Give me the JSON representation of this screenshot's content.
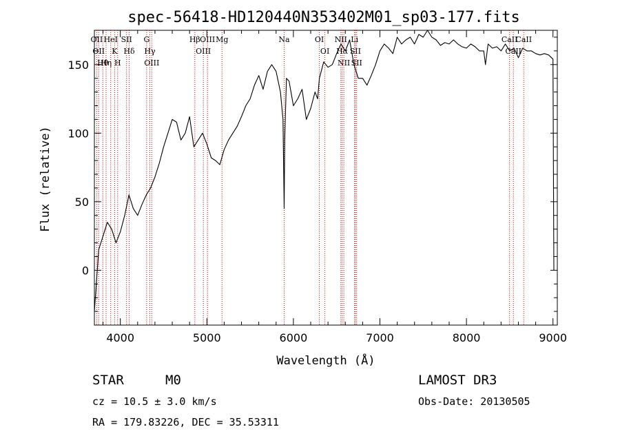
{
  "chart_data": {
    "type": "line",
    "title": "spec-56418-HD120440N353402M01_sp03-177.fits",
    "xlabel": "Wavelength (Å)",
    "ylabel": "Flux (relative)",
    "xlim": [
      3700,
      9050
    ],
    "ylim": [
      -40,
      175
    ],
    "xticks": [
      4000,
      5000,
      6000,
      7000,
      8000,
      9000
    ],
    "yticks": [
      0,
      50,
      100,
      150
    ],
    "series": [
      {
        "name": "flux",
        "x": [
          3700,
          3750,
          3800,
          3850,
          3900,
          3950,
          4000,
          4050,
          4100,
          4150,
          4200,
          4250,
          4300,
          4350,
          4400,
          4450,
          4500,
          4550,
          4600,
          4650,
          4700,
          4750,
          4800,
          4850,
          4900,
          4950,
          5000,
          5050,
          5100,
          5150,
          5200,
          5250,
          5300,
          5350,
          5400,
          5450,
          5500,
          5550,
          5600,
          5650,
          5700,
          5750,
          5800,
          5850,
          5880,
          5893,
          5900,
          5920,
          5950,
          6000,
          6050,
          6100,
          6150,
          6200,
          6250,
          6280,
          6300,
          6350,
          6400,
          6450,
          6500,
          6550,
          6600,
          6650,
          6700,
          6750,
          6800,
          6850,
          6900,
          6950,
          7000,
          7050,
          7100,
          7150,
          7200,
          7250,
          7300,
          7350,
          7400,
          7450,
          7500,
          7550,
          7600,
          7650,
          7700,
          7750,
          7800,
          7850,
          7900,
          7950,
          8000,
          8050,
          8100,
          8150,
          8200,
          8220,
          8250,
          8300,
          8350,
          8400,
          8450,
          8500,
          8550,
          8600,
          8650,
          8700,
          8750,
          8800,
          8850,
          8900,
          8950,
          9000,
          9010
        ],
        "y": [
          -30,
          15,
          25,
          35,
          30,
          20,
          28,
          40,
          55,
          45,
          40,
          48,
          55,
          60,
          68,
          78,
          90,
          100,
          110,
          108,
          95,
          100,
          112,
          90,
          95,
          100,
          92,
          82,
          80,
          77,
          88,
          95,
          100,
          105,
          112,
          120,
          125,
          135,
          142,
          132,
          145,
          150,
          145,
          130,
          110,
          45,
          95,
          140,
          138,
          120,
          125,
          132,
          110,
          118,
          130,
          125,
          140,
          152,
          148,
          150,
          158,
          165,
          160,
          168,
          150,
          140,
          140,
          135,
          142,
          150,
          160,
          165,
          162,
          158,
          170,
          165,
          168,
          170,
          165,
          172,
          170,
          175,
          170,
          168,
          164,
          166,
          165,
          168,
          165,
          163,
          162,
          165,
          163,
          160,
          160,
          150,
          165,
          162,
          163,
          160,
          165,
          160,
          162,
          155,
          162,
          160,
          160,
          158,
          157,
          158,
          157,
          154,
          0
        ]
      }
    ],
    "line_markers": [
      {
        "x": 3727,
        "label": "OII"
      },
      {
        "x": 3750,
        "label": "OII"
      },
      {
        "x": 3797,
        "label": "Hθ"
      },
      {
        "x": 3835,
        "label": "Hη"
      },
      {
        "x": 3889,
        "label": "HeI"
      },
      {
        "x": 3934,
        "label": "K"
      },
      {
        "x": 3969,
        "label": "H"
      },
      {
        "x": 4072,
        "label": "SII"
      },
      {
        "x": 4102,
        "label": "Hδ"
      },
      {
        "x": 4304,
        "label": "G"
      },
      {
        "x": 4341,
        "label": "Hγ"
      },
      {
        "x": 4363,
        "label": "OIII"
      },
      {
        "x": 4861,
        "label": "Hβ"
      },
      {
        "x": 4959,
        "label": "OIII"
      },
      {
        "x": 5007,
        "label": "OIII"
      },
      {
        "x": 5175,
        "label": "Mg"
      },
      {
        "x": 5893,
        "label": "Na"
      },
      {
        "x": 6300,
        "label": "OI"
      },
      {
        "x": 6364,
        "label": "OI"
      },
      {
        "x": 6548,
        "label": "NII"
      },
      {
        "x": 6563,
        "label": "Hα"
      },
      {
        "x": 6583,
        "label": "NII"
      },
      {
        "x": 6707,
        "label": "Li"
      },
      {
        "x": 6716,
        "label": "SII"
      },
      {
        "x": 6731,
        "label": "SII"
      },
      {
        "x": 8498,
        "label": "CaII"
      },
      {
        "x": 8542,
        "label": "CaII"
      },
      {
        "x": 8662,
        "label": "CaII"
      }
    ]
  },
  "info": {
    "object_class": "STAR",
    "subclass": "M0",
    "survey": "LAMOST DR3",
    "redshift": "cz = 10.5 ± 3.0 km/s",
    "obs_date": "Obs-Date: 20130505",
    "coords": "RA = 179.83226, DEC =  35.53311"
  },
  "colors": {
    "axis": "#000000",
    "line_marker": "#cc0000"
  }
}
